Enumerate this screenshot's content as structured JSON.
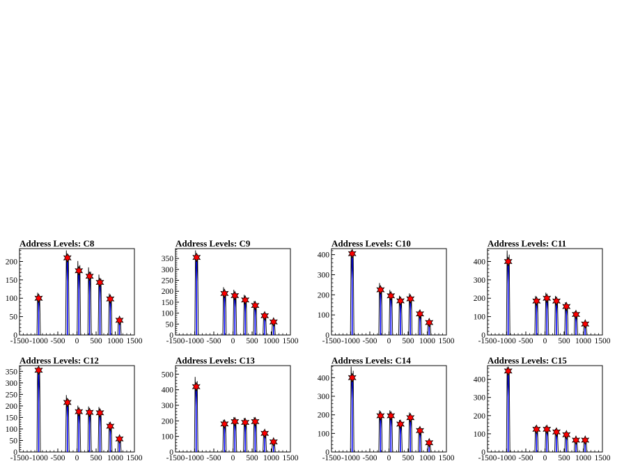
{
  "chart_data": [
    {
      "type": "histogram",
      "title": "Address Levels: C8",
      "xlim": [
        -1500,
        1500
      ],
      "ylim": [
        0,
        235
      ],
      "xticks": [
        -1500,
        -1000,
        -500,
        0,
        500,
        1000,
        1500
      ],
      "yticks": [
        0,
        50,
        100,
        150,
        200
      ],
      "peaks": [
        {
          "x": -1000,
          "y": 100
        },
        {
          "x": -250,
          "y": 210
        },
        {
          "x": 50,
          "y": 175
        },
        {
          "x": 330,
          "y": 160
        },
        {
          "x": 600,
          "y": 143
        },
        {
          "x": 870,
          "y": 98
        },
        {
          "x": 1110,
          "y": 40
        }
      ],
      "marker_color": "#ff0000",
      "line_color": "#0000ff"
    },
    {
      "type": "histogram",
      "title": "Address Levels: C9",
      "xlim": [
        -1500,
        1500
      ],
      "ylim": [
        0,
        395
      ],
      "xticks": [
        -1500,
        -1000,
        -500,
        0,
        500,
        1000,
        1500
      ],
      "yticks": [
        0,
        50,
        100,
        150,
        200,
        250,
        300,
        350
      ],
      "peaks": [
        {
          "x": -950,
          "y": 355
        },
        {
          "x": -220,
          "y": 190
        },
        {
          "x": 50,
          "y": 180
        },
        {
          "x": 320,
          "y": 160
        },
        {
          "x": 580,
          "y": 135
        },
        {
          "x": 830,
          "y": 88
        },
        {
          "x": 1060,
          "y": 60
        }
      ],
      "marker_color": "#ff0000",
      "line_color": "#0000ff"
    },
    {
      "type": "histogram",
      "title": "Address Levels: C10",
      "xlim": [
        -1500,
        1500
      ],
      "ylim": [
        0,
        430
      ],
      "xticks": [
        -1500,
        -1000,
        -500,
        0,
        500,
        1000,
        1500
      ],
      "yticks": [
        0,
        100,
        200,
        300,
        400
      ],
      "peaks": [
        {
          "x": -960,
          "y": 405
        },
        {
          "x": -220,
          "y": 225
        },
        {
          "x": 50,
          "y": 195
        },
        {
          "x": 300,
          "y": 170
        },
        {
          "x": 560,
          "y": 180
        },
        {
          "x": 810,
          "y": 105
        },
        {
          "x": 1050,
          "y": 62
        }
      ],
      "marker_color": "#ff0000",
      "line_color": "#0000ff"
    },
    {
      "type": "histogram",
      "title": "Address Levels: C11",
      "xlim": [
        -1500,
        1500
      ],
      "ylim": [
        0,
        470
      ],
      "xticks": [
        -1500,
        -1000,
        -500,
        0,
        500,
        1000,
        1500
      ],
      "yticks": [
        0,
        100,
        200,
        300,
        400
      ],
      "peaks": [
        {
          "x": -960,
          "y": 400
        },
        {
          "x": -220,
          "y": 185
        },
        {
          "x": 50,
          "y": 200
        },
        {
          "x": 300,
          "y": 185
        },
        {
          "x": 560,
          "y": 155
        },
        {
          "x": 810,
          "y": 112
        },
        {
          "x": 1050,
          "y": 60
        }
      ],
      "marker_color": "#ff0000",
      "line_color": "#0000ff"
    },
    {
      "type": "histogram",
      "title": "Address Levels: C12",
      "xlim": [
        -1500,
        1500
      ],
      "ylim": [
        0,
        375
      ],
      "xticks": [
        -1500,
        -1000,
        -500,
        0,
        500,
        1000,
        1500
      ],
      "yticks": [
        0,
        50,
        100,
        150,
        200,
        250,
        300,
        350
      ],
      "peaks": [
        {
          "x": -1000,
          "y": 355
        },
        {
          "x": -250,
          "y": 215
        },
        {
          "x": 50,
          "y": 175
        },
        {
          "x": 330,
          "y": 172
        },
        {
          "x": 600,
          "y": 170
        },
        {
          "x": 870,
          "y": 112
        },
        {
          "x": 1110,
          "y": 57
        }
      ],
      "marker_color": "#ff0000",
      "line_color": "#0000ff"
    },
    {
      "type": "histogram",
      "title": "Address Levels: C13",
      "xlim": [
        -1500,
        1500
      ],
      "ylim": [
        0,
        555
      ],
      "xticks": [
        -1500,
        -1000,
        -500,
        0,
        500,
        1000,
        1500
      ],
      "yticks": [
        0,
        100,
        200,
        300,
        400,
        500
      ],
      "peaks": [
        {
          "x": -960,
          "y": 420
        },
        {
          "x": -220,
          "y": 180
        },
        {
          "x": 50,
          "y": 195
        },
        {
          "x": 320,
          "y": 190
        },
        {
          "x": 580,
          "y": 195
        },
        {
          "x": 830,
          "y": 120
        },
        {
          "x": 1060,
          "y": 65
        }
      ],
      "marker_color": "#ff0000",
      "line_color": "#0000ff"
    },
    {
      "type": "histogram",
      "title": "Address Levels: C14",
      "xlim": [
        -1500,
        1500
      ],
      "ylim": [
        0,
        465
      ],
      "xticks": [
        -1500,
        -1000,
        -500,
        0,
        500,
        1000,
        1500
      ],
      "yticks": [
        0,
        100,
        200,
        300,
        400
      ],
      "peaks": [
        {
          "x": -960,
          "y": 400
        },
        {
          "x": -220,
          "y": 195
        },
        {
          "x": 50,
          "y": 195
        },
        {
          "x": 300,
          "y": 150
        },
        {
          "x": 560,
          "y": 185
        },
        {
          "x": 810,
          "y": 115
        },
        {
          "x": 1050,
          "y": 50
        }
      ],
      "marker_color": "#ff0000",
      "line_color": "#0000ff"
    },
    {
      "type": "histogram",
      "title": "Address Levels: C15",
      "xlim": [
        -1500,
        1500
      ],
      "ylim": [
        0,
        475
      ],
      "xticks": [
        -1500,
        -1000,
        -500,
        0,
        500,
        1000,
        1500
      ],
      "yticks": [
        0,
        100,
        200,
        300,
        400
      ],
      "peaks": [
        {
          "x": -960,
          "y": 445
        },
        {
          "x": -220,
          "y": 125
        },
        {
          "x": 50,
          "y": 125
        },
        {
          "x": 300,
          "y": 110
        },
        {
          "x": 560,
          "y": 95
        },
        {
          "x": 810,
          "y": 65
        },
        {
          "x": 1050,
          "y": 65
        }
      ],
      "marker_color": "#ff0000",
      "line_color": "#0000ff"
    }
  ]
}
